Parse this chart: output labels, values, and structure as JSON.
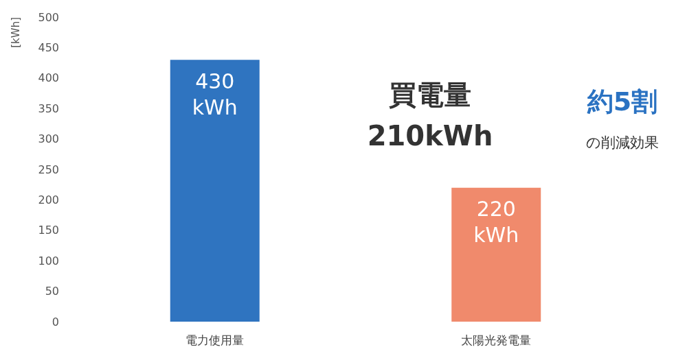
{
  "chart_data": {
    "type": "bar",
    "ylabel": "[kWh]",
    "categories": [
      "電力使用量",
      "太陽光発電量"
    ],
    "values": [
      430,
      220
    ],
    "colors": [
      "#2f74c0",
      "#f08a6c"
    ],
    "value_labels": [
      "430\nkWh",
      "220\nkWh"
    ],
    "ylim": [
      0,
      500
    ],
    "yticks": [
      0,
      50,
      100,
      150,
      200,
      250,
      300,
      350,
      400,
      450,
      500
    ],
    "grid": false,
    "annotations": [
      "買電量",
      "210kWh",
      "約5割",
      "の削減効果"
    ]
  }
}
